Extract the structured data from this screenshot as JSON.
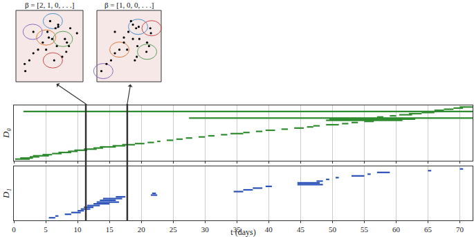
{
  "chart_data": [
    {
      "type": "barcode",
      "y_label": "D₀",
      "color": "#2e8b2e",
      "xlim": [
        0,
        72
      ],
      "xticks": [
        0,
        5,
        10,
        15,
        20,
        25,
        30,
        35,
        40,
        45,
        50,
        55,
        60,
        65,
        70
      ],
      "grid": true,
      "tick_labels": false,
      "intervals": [
        [
          0.2,
          2.5
        ],
        [
          1,
          3
        ],
        [
          2.5,
          4
        ],
        [
          3,
          5.5
        ],
        [
          4.5,
          6
        ],
        [
          6,
          7.5
        ],
        [
          7,
          9
        ],
        [
          8.5,
          10
        ],
        [
          9.5,
          11.5
        ],
        [
          11,
          13
        ],
        [
          12.5,
          14
        ],
        [
          13.5,
          16
        ],
        [
          15.5,
          17.5
        ],
        [
          17,
          19
        ],
        [
          19,
          20.5
        ],
        [
          21,
          22
        ],
        [
          22.5,
          23
        ],
        [
          24,
          25
        ],
        [
          25.5,
          26.5
        ],
        [
          27,
          28
        ],
        [
          29,
          30
        ],
        [
          30.5,
          31.5
        ],
        [
          32.5,
          33.5
        ],
        [
          34,
          36
        ],
        [
          36,
          37
        ],
        [
          38,
          39
        ],
        [
          39.5,
          41
        ],
        [
          42,
          43
        ],
        [
          44,
          45.5
        ],
        [
          46,
          47
        ],
        [
          47,
          48
        ],
        [
          49,
          51
        ],
        [
          51.5,
          52.5
        ],
        [
          53,
          54
        ],
        [
          55,
          56.5
        ],
        [
          49,
          61
        ],
        [
          49.5,
          63
        ],
        [
          27.5,
          72
        ],
        [
          57,
          58
        ],
        [
          59,
          60
        ],
        [
          60.5,
          62.5
        ],
        [
          62,
          64
        ],
        [
          64,
          66
        ],
        [
          1.5,
          72
        ],
        [
          66,
          67.5
        ],
        [
          67.5,
          69
        ],
        [
          69,
          70.5
        ],
        [
          70,
          72
        ]
      ]
    },
    {
      "type": "barcode",
      "y_label": "D₁",
      "color": "#2a52b8",
      "x_label": "t (days)",
      "xlim": [
        0,
        72
      ],
      "xticks": [
        0,
        5,
        10,
        15,
        20,
        25,
        30,
        35,
        40,
        45,
        50,
        55,
        60,
        65,
        70
      ],
      "grid": true,
      "tick_labels": "x",
      "intervals": [
        [
          5.5,
          6.5
        ],
        [
          6.5,
          7
        ],
        [
          8,
          9
        ],
        [
          9,
          10.5
        ],
        [
          10,
          11
        ],
        [
          10.5,
          12
        ],
        [
          11,
          12.5
        ],
        [
          11.5,
          13.5
        ],
        [
          12.5,
          15
        ],
        [
          13,
          16.5
        ],
        [
          13.5,
          16
        ],
        [
          14,
          17
        ],
        [
          16,
          17.5
        ],
        [
          21.5,
          22.5
        ],
        [
          21.7,
          22.3
        ],
        [
          34.5,
          36
        ],
        [
          36,
          37.5
        ],
        [
          37.5,
          39
        ],
        [
          39.5,
          40.5
        ],
        [
          44.5,
          48.5
        ],
        [
          44.5,
          48
        ],
        [
          47.5,
          48.5
        ],
        [
          49,
          49.5
        ],
        [
          50.5,
          51
        ],
        [
          53,
          55
        ],
        [
          55.5,
          56
        ],
        [
          57,
          59
        ],
        [
          65,
          65.5
        ],
        [
          70,
          70.5
        ]
      ]
    }
  ],
  "snapshots": [
    {
      "t": 11.3,
      "label": "β = [2, 1, 0, . . .]"
    },
    {
      "t": 17.8,
      "label": "β = [1, 0, 0, . . .]"
    }
  ]
}
